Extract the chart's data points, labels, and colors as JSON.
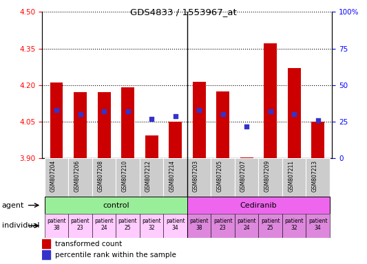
{
  "title": "GDS4833 / 1553967_at",
  "samples": [
    "GSM807204",
    "GSM807206",
    "GSM807208",
    "GSM807210",
    "GSM807212",
    "GSM807214",
    "GSM807203",
    "GSM807205",
    "GSM807207",
    "GSM807209",
    "GSM807211",
    "GSM807213"
  ],
  "bar_values": [
    4.21,
    4.17,
    4.17,
    4.19,
    3.995,
    4.05,
    4.215,
    4.175,
    3.905,
    4.37,
    4.27,
    4.05
  ],
  "percentile_values": [
    33,
    30,
    32,
    32,
    27,
    29,
    33,
    30,
    22,
    32,
    30,
    26
  ],
  "ylim_left": [
    3.9,
    4.5
  ],
  "ylim_right": [
    0,
    100
  ],
  "yticks_left": [
    3.9,
    4.05,
    4.2,
    4.35,
    4.5
  ],
  "yticks_right": [
    0,
    25,
    50,
    75,
    100
  ],
  "ytick_labels_right": [
    "0",
    "25",
    "50",
    "75",
    "100%"
  ],
  "bar_color": "#cc0000",
  "dot_color": "#3333cc",
  "control_label": "control",
  "cediranib_label": "Cediranib",
  "individuals": [
    "patient\n38",
    "patient\n23",
    "patient\n24",
    "patient\n25",
    "patient\n32",
    "patient\n34",
    "patient\n38",
    "patient\n23",
    "patient\n24",
    "patient\n25",
    "patient\n32",
    "patient\n34"
  ],
  "agent_label": "agent",
  "individual_label": "individual",
  "legend_bar": "transformed count",
  "legend_dot": "percentile rank within the sample",
  "control_bg": "#99ee99",
  "cediranib_bg": "#ee66ee",
  "individual_bg_control": "#ffccff",
  "individual_bg_cediranib": "#dd88dd",
  "x_label_bg": "#cccccc"
}
